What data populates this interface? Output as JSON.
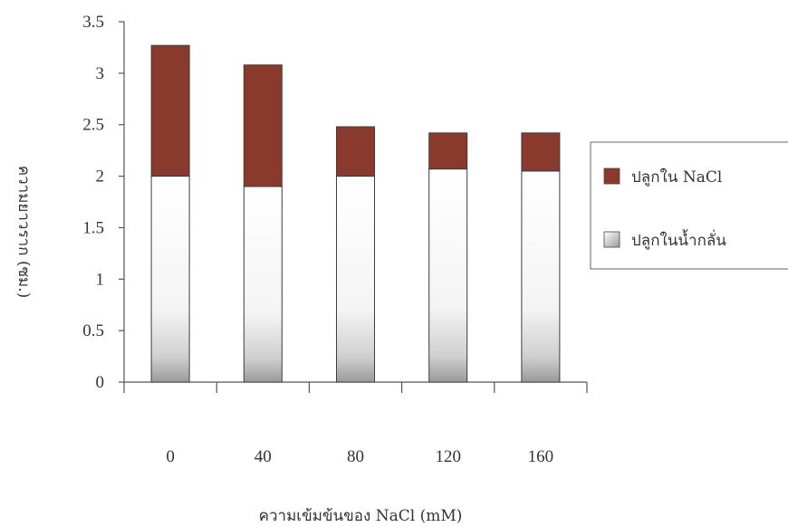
{
  "chart_data": {
    "type": "bar",
    "stacked": true,
    "categories": [
      "0",
      "40",
      "80",
      "120",
      "160"
    ],
    "series": [
      {
        "name": "ปลูกในน้ำกลั่น",
        "values": [
          2.0,
          1.9,
          2.0,
          2.07,
          2.05
        ]
      },
      {
        "name": "ปลูกใน NaCl",
        "values": [
          1.27,
          1.18,
          0.48,
          0.35,
          0.37
        ]
      }
    ],
    "title": "",
    "xlabel": "ความเข้มข้นของ NaCl (mM)",
    "ylabel": "ความยาวราก (ซม.)",
    "ylim": [
      0,
      3.5
    ],
    "yticks": [
      "0",
      "0.5",
      "1",
      "1.5",
      "2",
      "2.5",
      "3",
      "3.5"
    ],
    "grid": false,
    "legend": "right",
    "colors": {
      "distilled": "#ffffff",
      "nacl": "#8a3a2c",
      "axis": "#555555"
    }
  }
}
